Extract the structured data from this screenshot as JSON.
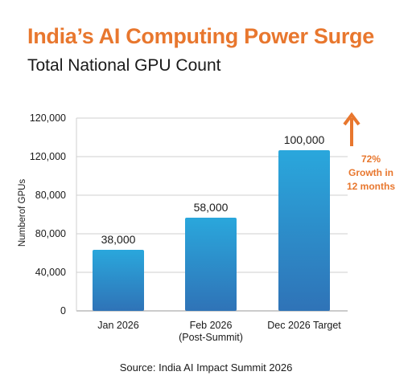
{
  "header": {
    "title": "India’s AI Computing Power Surge",
    "subtitle": "Total National GPU Count"
  },
  "chart_data": {
    "type": "bar",
    "title": "India’s AI Computing Power Surge",
    "subtitle": "Total National GPU Count",
    "ylabel": "Numberof GPUs",
    "xlabel": "",
    "categories": [
      [
        "Jan 2026"
      ],
      [
        "Feb 2026",
        "(Post-Summit)"
      ],
      [
        "Dec 2026 Target"
      ]
    ],
    "values": [
      38000,
      58000,
      100000
    ],
    "data_labels": [
      "38,000",
      "58,000",
      "100,000"
    ],
    "y_tick_labels": [
      "0",
      "40,000",
      "80,000",
      "80,000",
      "120,000",
      "120,000"
    ],
    "ylim": [
      0,
      120000
    ],
    "grid": true,
    "bar_color_top": "#2aa7dc",
    "bar_color_bottom": "#2f73b7",
    "accent_color": "#e8772e",
    "annotation": {
      "lines": [
        "72%",
        "Growth in",
        "12 months"
      ],
      "icon": "up-arrow-icon"
    }
  },
  "footer": {
    "source": "Source: India AI Impact Summit 2026"
  }
}
